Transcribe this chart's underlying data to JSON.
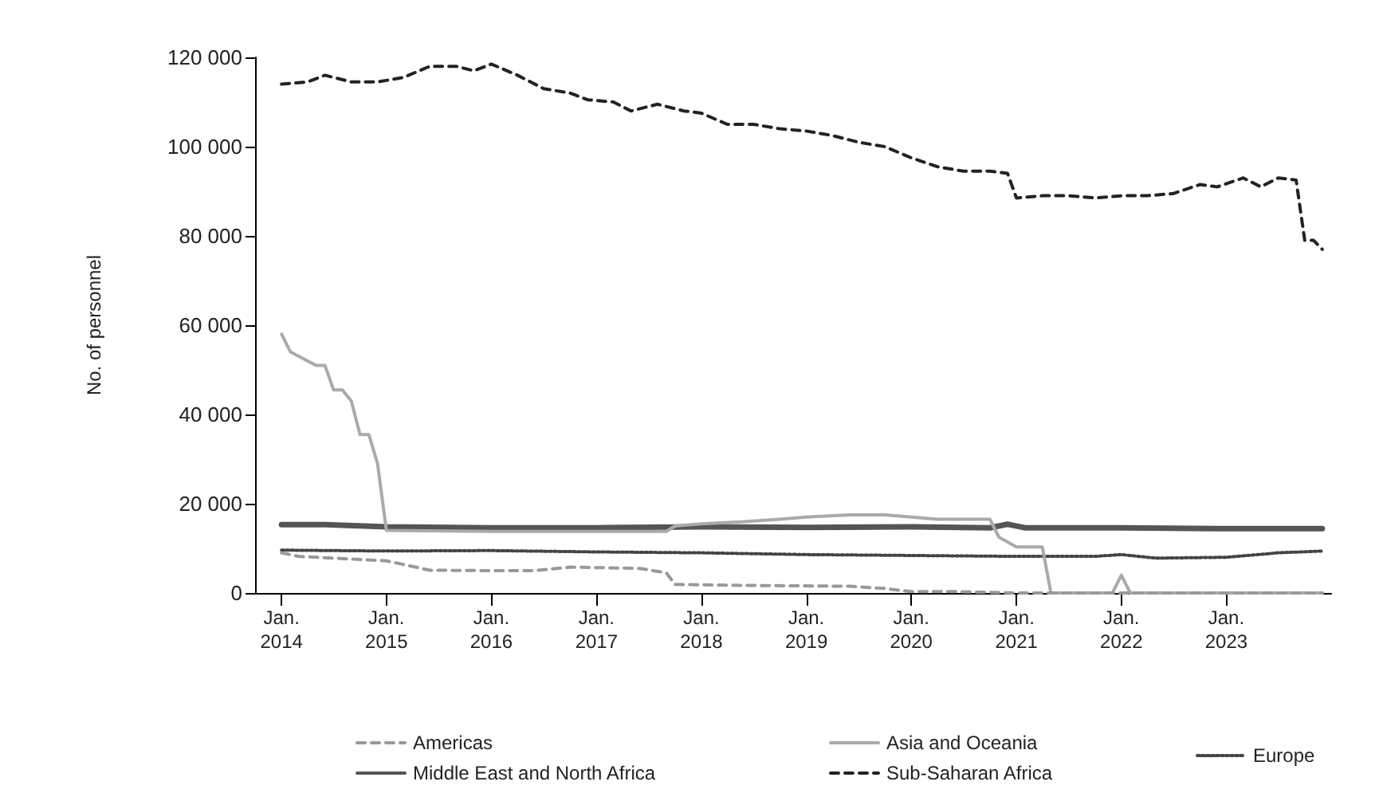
{
  "chart_data": {
    "type": "line",
    "ylabel": "No. of personnel",
    "grid": false,
    "legend": "bottom",
    "marker": "none",
    "xlim": [
      "2013-10-01",
      "2024-01-01"
    ],
    "xticks": [
      {
        "value": "2014-01",
        "label": "Jan.\n2014"
      },
      {
        "value": "2015-01",
        "label": "Jan.\n2015"
      },
      {
        "value": "2016-01",
        "label": "Jan.\n2016"
      },
      {
        "value": "2017-01",
        "label": "Jan.\n2017"
      },
      {
        "value": "2018-01",
        "label": "Jan.\n2018"
      },
      {
        "value": "2019-01",
        "label": "Jan.\n2019"
      },
      {
        "value": "2020-01",
        "label": "Jan.\n2020"
      },
      {
        "value": "2021-01",
        "label": "Jan.\n2021"
      },
      {
        "value": "2022-01",
        "label": "Jan.\n2022"
      },
      {
        "value": "2023-01",
        "label": "Jan.\n2023"
      }
    ],
    "ylim": [
      0,
      120000
    ],
    "yticks": [
      {
        "value": 0,
        "label": "0"
      },
      {
        "value": 20000,
        "label": "20 000"
      },
      {
        "value": 40000,
        "label": "40 000"
      },
      {
        "value": 60000,
        "label": "60 000"
      },
      {
        "value": 80000,
        "label": "80 000"
      },
      {
        "value": 100000,
        "label": "100 000"
      },
      {
        "value": 120000,
        "label": "120 000"
      }
    ],
    "series": [
      {
        "name": "Americas",
        "color": "#999999",
        "line_style": "dashed",
        "x": [
          "2014-01",
          "2014-03",
          "2014-09",
          "2015-01",
          "2015-06",
          "2016-01",
          "2016-06",
          "2016-10",
          "2017-06",
          "2017-09",
          "2017-10",
          "2018-06",
          "2019-06",
          "2019-10",
          "2020-01",
          "2020-06",
          "2021-01",
          "2022-01",
          "2023-01",
          "2023-12"
        ],
        "values": [
          9000,
          8200,
          7600,
          7200,
          5100,
          5000,
          5000,
          5800,
          5500,
          4500,
          1900,
          1700,
          1500,
          1000,
          300,
          300,
          0,
          0,
          0,
          0
        ]
      },
      {
        "name": "Asia and Oceania",
        "color": "#aaaaaa",
        "line_style": "solid",
        "x": [
          "2014-01",
          "2014-02",
          "2014-04",
          "2014-05",
          "2014-06",
          "2014-07",
          "2014-08",
          "2014-09",
          "2014-10",
          "2014-11",
          "2014-12",
          "2015-01",
          "2016-01",
          "2017-01",
          "2017-09",
          "2017-10",
          "2018-01",
          "2018-06",
          "2018-10",
          "2019-01",
          "2019-06",
          "2019-10",
          "2020-01",
          "2020-04",
          "2020-10",
          "2020-11",
          "2021-01",
          "2021-04",
          "2021-05",
          "2021-12",
          "2022-01",
          "2022-02",
          "2023-01",
          "2023-12"
        ],
        "values": [
          58000,
          54000,
          52000,
          51000,
          51000,
          45500,
          45500,
          43000,
          35500,
          35500,
          29000,
          14000,
          13800,
          13800,
          13800,
          15000,
          15500,
          16000,
          16500,
          17000,
          17500,
          17500,
          17000,
          16500,
          16500,
          12500,
          10300,
          10300,
          0,
          0,
          4000,
          0,
          0,
          0
        ]
      },
      {
        "name": "Europe",
        "color": "#444444",
        "line_style": "dotted",
        "x": [
          "2014-01",
          "2015-01",
          "2016-01",
          "2017-01",
          "2018-01",
          "2019-01",
          "2020-01",
          "2021-01",
          "2021-10",
          "2022-01",
          "2022-05",
          "2023-01",
          "2023-07",
          "2023-12"
        ],
        "values": [
          9600,
          9400,
          9500,
          9200,
          9000,
          8600,
          8400,
          8200,
          8200,
          8600,
          7800,
          8000,
          9000,
          9400
        ]
      },
      {
        "name": "Middle East and North Africa",
        "color": "#555555",
        "line_style": "solid",
        "x": [
          "2014-01",
          "2014-06",
          "2015-01",
          "2016-01",
          "2017-01",
          "2018-01",
          "2019-01",
          "2020-01",
          "2020-10",
          "2020-12",
          "2021-02",
          "2022-01",
          "2023-01",
          "2023-12"
        ],
        "values": [
          15300,
          15300,
          14800,
          14600,
          14600,
          14800,
          14700,
          14800,
          14600,
          15400,
          14600,
          14600,
          14400,
          14400
        ]
      },
      {
        "name": "Sub-Saharan Africa",
        "color": "#222222",
        "line_style": "dashed",
        "x": [
          "2014-01",
          "2014-04",
          "2014-06",
          "2014-09",
          "2014-12",
          "2015-03",
          "2015-06",
          "2015-09",
          "2015-11",
          "2016-01",
          "2016-04",
          "2016-07",
          "2016-10",
          "2016-12",
          "2017-03",
          "2017-05",
          "2017-08",
          "2017-11",
          "2018-01",
          "2018-04",
          "2018-07",
          "2018-10",
          "2019-01",
          "2019-04",
          "2019-07",
          "2019-10",
          "2020-01",
          "2020-04",
          "2020-07",
          "2020-10",
          "2020-12",
          "2021-01",
          "2021-04",
          "2021-07",
          "2021-10",
          "2022-01",
          "2022-04",
          "2022-07",
          "2022-10",
          "2022-12",
          "2023-03",
          "2023-05",
          "2023-07",
          "2023-09",
          "2023-10",
          "2023-11",
          "2023-12"
        ],
        "values": [
          114000,
          114500,
          116000,
          114500,
          114500,
          115500,
          118000,
          118000,
          117000,
          118500,
          116000,
          113000,
          112000,
          110500,
          110000,
          108000,
          109500,
          108000,
          107500,
          105000,
          105000,
          104000,
          103500,
          102500,
          101000,
          100000,
          97500,
          95500,
          94500,
          94500,
          94000,
          88500,
          89000,
          89000,
          88500,
          89000,
          89000,
          89500,
          91500,
          91000,
          93000,
          91000,
          93000,
          92500,
          79000,
          79000,
          77000
        ]
      }
    ]
  }
}
